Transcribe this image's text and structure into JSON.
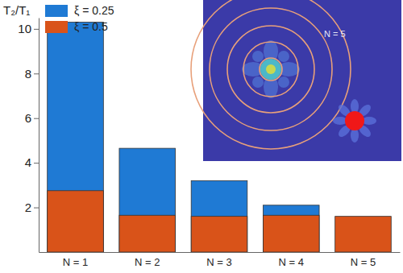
{
  "chart_data": {
    "type": "bar",
    "y_label": "T₂/T₁",
    "categories": [
      "N = 1",
      "N = 2",
      "N = 3",
      "N = 4",
      "N = 5"
    ],
    "series": [
      {
        "name": "ξ = 0.25",
        "color": "#1f7ad4",
        "values": [
          10.3,
          4.65,
          3.2,
          2.1,
          null
        ]
      },
      {
        "name": "ξ = 0.5",
        "color": "#d95319",
        "values": [
          2.75,
          1.65,
          1.6,
          1.65,
          1.6
        ]
      }
    ],
    "stacked": false,
    "ylim": [
      0,
      10.5
    ],
    "yticks": [
      2,
      4,
      6,
      8,
      10
    ],
    "legend": "upper left",
    "annotations": [
      "N = 5"
    ]
  }
}
